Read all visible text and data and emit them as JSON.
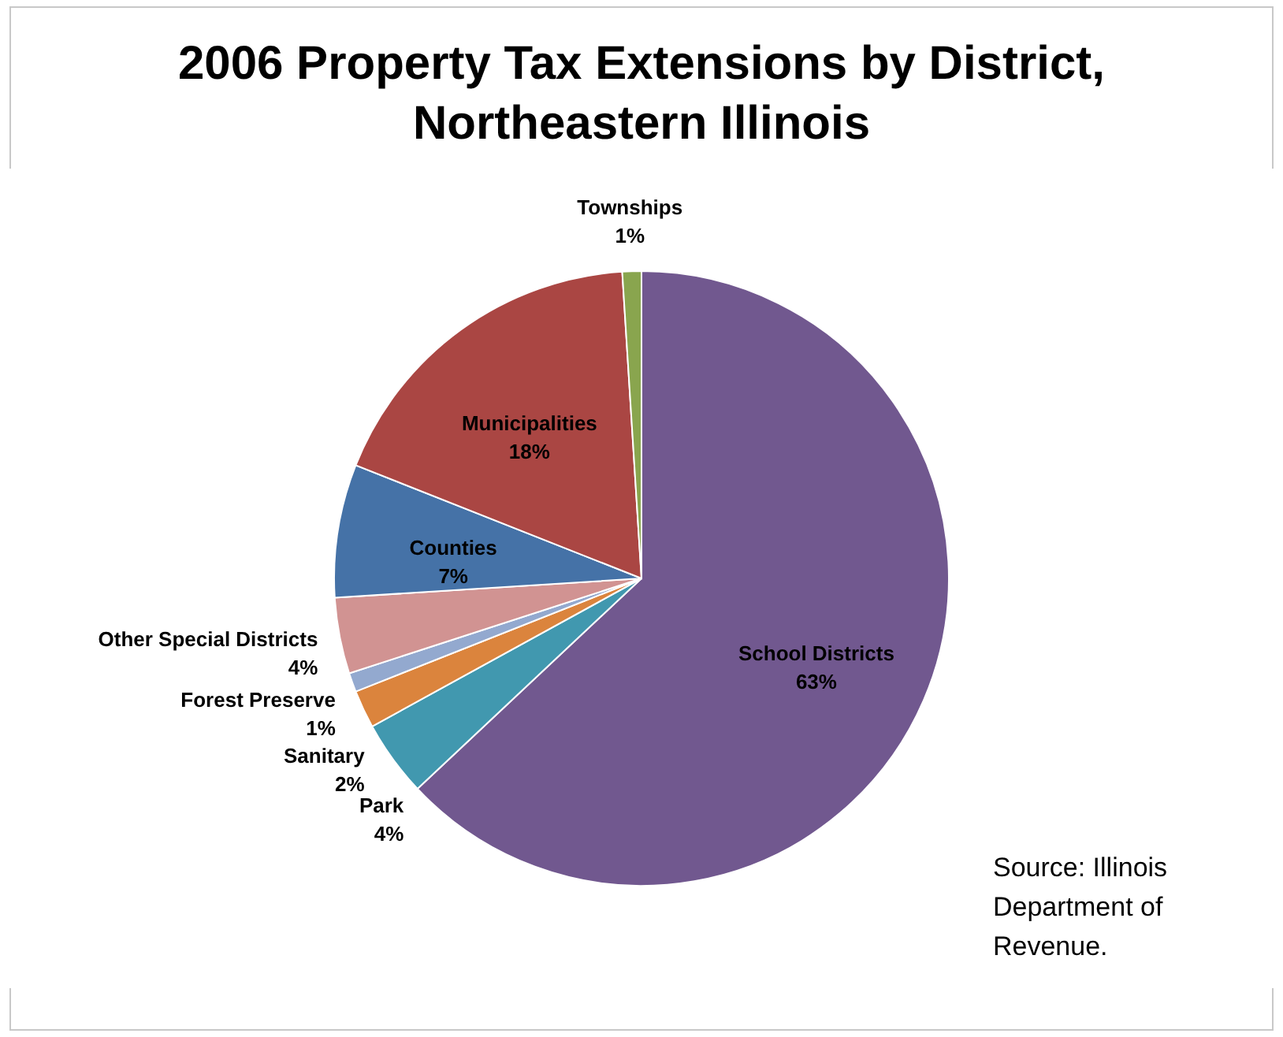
{
  "chart_data": {
    "type": "pie",
    "title": "2006 Property Tax Extensions by District, Northeastern Illinois",
    "categories": [
      "School Districts",
      "Park",
      "Sanitary",
      "Forest Preserve",
      "Other Special Districts",
      "Counties",
      "Municipalities",
      "Townships"
    ],
    "values": [
      63,
      4,
      2,
      1,
      4,
      7,
      18,
      1
    ],
    "value_labels": [
      "63%",
      "4%",
      "2%",
      "1%",
      "4%",
      "7%",
      "18%",
      "1%"
    ],
    "colors": [
      "#71588f",
      "#4198af",
      "#db843d",
      "#93a9cf",
      "#d19392",
      "#4572a7",
      "#aa4643",
      "#89a54e"
    ],
    "annotations": [
      "Source: Illinois Department of Revenue."
    ]
  }
}
